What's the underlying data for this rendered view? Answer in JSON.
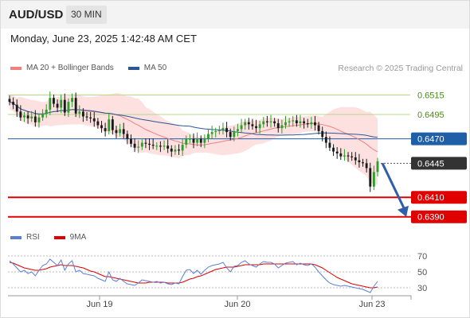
{
  "header": {
    "symbol": "AUD/USD",
    "timeframe": "30 MIN"
  },
  "datetime": "Monday, June 23, 2025 1:42:48 AM CET",
  "legend_main": [
    {
      "label": "MA 20 + Bollinger Bands",
      "color": "#f08080"
    },
    {
      "label": "MA 50",
      "color": "#2b5797"
    }
  ],
  "credit": "Research © 2025 Trading Central",
  "legend_rsi": [
    {
      "label": "RSI",
      "color": "#5b7fd6"
    },
    {
      "label": "9MA",
      "color": "#e00000"
    }
  ],
  "chart_data": {
    "type": "candlestick",
    "x_labels": [
      "Jun 19",
      "Jun 20",
      "Jun 23"
    ],
    "price_axis_labels": [
      "0.6515",
      "0.6495"
    ],
    "price_ylim": [
      0.638,
      0.6535
    ],
    "levels": [
      {
        "label": "0.6515",
        "value": 0.6515,
        "color": "#b8d98a",
        "style": "plain"
      },
      {
        "label": "0.6495",
        "value": 0.6495,
        "color": "#b8d98a",
        "style": "plain"
      },
      {
        "label": "0.6470",
        "value": 0.647,
        "color": "#1f5fa8",
        "style": "boxed"
      },
      {
        "label": "0.6445",
        "value": 0.6445,
        "color": "#333333",
        "style": "boxed"
      },
      {
        "label": "0.6410",
        "value": 0.641,
        "color": "#e00000",
        "style": "boxed"
      },
      {
        "label": "0.6390",
        "value": 0.639,
        "color": "#e00000",
        "style": "boxed"
      }
    ],
    "projection": {
      "from": 0.6445,
      "to": 0.639
    },
    "candles_close": [
      0.6508,
      0.6505,
      0.6498,
      0.6492,
      0.6494,
      0.6491,
      0.6493,
      0.6487,
      0.6492,
      0.6496,
      0.65,
      0.6512,
      0.6506,
      0.6502,
      0.651,
      0.6497,
      0.6508,
      0.6512,
      0.6496,
      0.6498,
      0.6493,
      0.6492,
      0.6491,
      0.6488,
      0.6484,
      0.6481,
      0.6478,
      0.649,
      0.6479,
      0.6476,
      0.648,
      0.6475,
      0.647,
      0.6465,
      0.6461,
      0.6462,
      0.6466,
      0.6465,
      0.6464,
      0.6463,
      0.6463,
      0.6462,
      0.6463,
      0.646,
      0.6457,
      0.6459,
      0.6458,
      0.6464,
      0.647,
      0.647,
      0.6466,
      0.647,
      0.6466,
      0.647,
      0.6475,
      0.6477,
      0.6478,
      0.6479,
      0.6481,
      0.6477,
      0.6472,
      0.6478,
      0.648,
      0.6484,
      0.6487,
      0.6485,
      0.6483,
      0.6481,
      0.6485,
      0.6488,
      0.6487,
      0.6488,
      0.6486,
      0.6481,
      0.6484,
      0.6487,
      0.6488,
      0.6489,
      0.6486,
      0.6488,
      0.6486,
      0.6485,
      0.6487,
      0.6484,
      0.6478,
      0.6472,
      0.6466,
      0.6461,
      0.6457,
      0.6455,
      0.6452,
      0.6453,
      0.6452,
      0.6451,
      0.6448,
      0.6446,
      0.6445,
      0.644,
      0.6421,
      0.6436,
      0.6447
    ],
    "rsi": {
      "levels": [
        70,
        50,
        30
      ],
      "ylim": [
        20,
        80
      ],
      "rsi_values": [
        64,
        60,
        55,
        50,
        52,
        48,
        50,
        45,
        52,
        58,
        60,
        66,
        62,
        58,
        65,
        52,
        60,
        64,
        50,
        52,
        48,
        47,
        46,
        45,
        42,
        40,
        38,
        50,
        40,
        38,
        42,
        38,
        35,
        34,
        33,
        36,
        40,
        39,
        38,
        37,
        38,
        36,
        37,
        35,
        34,
        36,
        35,
        44,
        52,
        53,
        48,
        52,
        47,
        52,
        56,
        58,
        59,
        60,
        62,
        55,
        50,
        57,
        58,
        62,
        64,
        60,
        58,
        56,
        60,
        63,
        62,
        62,
        60,
        55,
        58,
        61,
        62,
        63,
        59,
        61,
        59,
        58,
        60,
        56,
        50,
        45,
        40,
        36,
        34,
        33,
        32,
        33,
        32,
        31,
        30,
        29,
        28,
        26,
        24,
        32,
        38
      ],
      "ma_values": [
        62,
        61,
        59,
        57,
        55,
        54,
        53,
        52,
        52,
        53,
        54,
        56,
        57,
        58,
        59,
        58,
        58,
        58,
        57,
        56,
        55,
        53,
        51,
        50,
        48,
        46,
        44,
        44,
        43,
        42,
        41,
        40,
        39,
        38,
        37,
        36,
        36,
        36,
        37,
        37,
        37,
        37,
        37,
        36,
        36,
        36,
        36,
        37,
        39,
        41,
        42,
        44,
        45,
        47,
        49,
        51,
        53,
        54,
        55,
        56,
        56,
        56,
        57,
        58,
        59,
        59,
        59,
        59,
        59,
        60,
        60,
        60,
        60,
        60,
        60,
        60,
        60,
        60,
        60,
        60,
        60,
        60,
        60,
        59,
        57,
        55,
        52,
        49,
        46,
        43,
        41,
        39,
        37,
        35,
        34,
        33,
        32,
        31,
        30,
        30,
        31
      ]
    }
  }
}
